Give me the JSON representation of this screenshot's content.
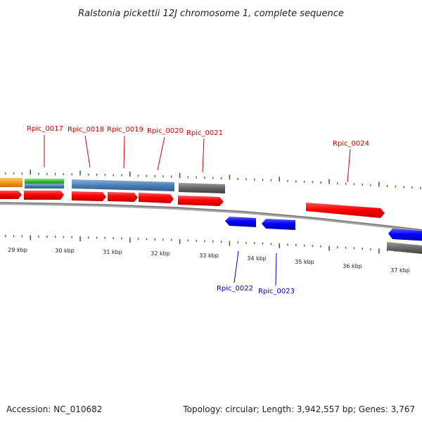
{
  "title": "Ralstonia pickettii 12J chromosome 1, complete sequence",
  "footer": {
    "accession": "Accession: NC_010682",
    "stats": "Topology: circular; Length: 3,942,557 bp; Genes: 3,767"
  },
  "colors": {
    "forward_cds": "#ff0000",
    "reverse_cds": "#0000ff",
    "label_forward": "#cc0000",
    "label_reverse": "#0000cc",
    "tick": "#2a7a1a",
    "backbone": "#8a8a8a",
    "feature_blue": "#4a7fb5",
    "feature_gray": "#666666",
    "feature_orange": "#f39a1c",
    "feature_green": "#3cbf3c"
  },
  "axis": {
    "unit": "kbp",
    "tick_labels": [
      "29 kbp",
      "30 kbp",
      "31 kbp",
      "32 kbp",
      "33 kbp",
      "34 kbp",
      "35 kbp",
      "36 kbp",
      "37 kbp"
    ]
  },
  "genes": {
    "forward": [
      "Rpic_0017",
      "Rpic_0018",
      "Rpic_0019",
      "Rpic_0020",
      "Rpic_0021",
      "Rpic_0024"
    ],
    "reverse": [
      "Rpic_0022",
      "Rpic_0023"
    ]
  }
}
